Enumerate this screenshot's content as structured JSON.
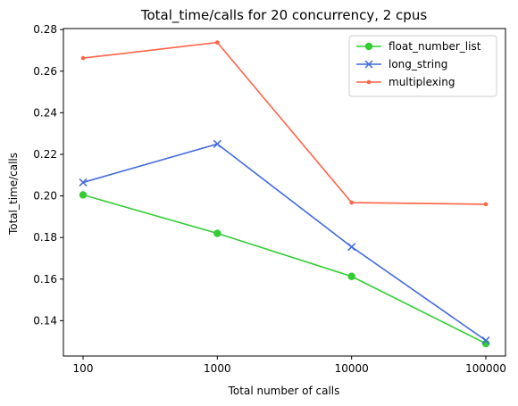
{
  "chart_data": {
    "type": "line",
    "title": "Total_time/calls for 20 concurrency, 2 cpus",
    "xlabel": "Total number of calls",
    "ylabel": "Total_time/calls",
    "categories": [
      "100",
      "1000",
      "10000",
      "100000"
    ],
    "ylim": [
      0.123,
      0.2805
    ],
    "yticks": [
      "0.14",
      "0.16",
      "0.18",
      "0.20",
      "0.22",
      "0.24",
      "0.26",
      "0.28"
    ],
    "legend_position": "top-right",
    "grid": false,
    "series": [
      {
        "name": "float_number_list",
        "color": "#32cd32",
        "marker": "circle",
        "values": [
          0.2005,
          0.182,
          0.1613,
          0.129
        ]
      },
      {
        "name": "long_string",
        "color": "#4169e1",
        "marker": "x",
        "values": [
          0.2065,
          0.225,
          0.1755,
          0.1305
        ]
      },
      {
        "name": "multiplexing",
        "color": "#ff6347",
        "marker": "dot",
        "values": [
          0.2663,
          0.2738,
          0.1968,
          0.196
        ]
      }
    ]
  }
}
